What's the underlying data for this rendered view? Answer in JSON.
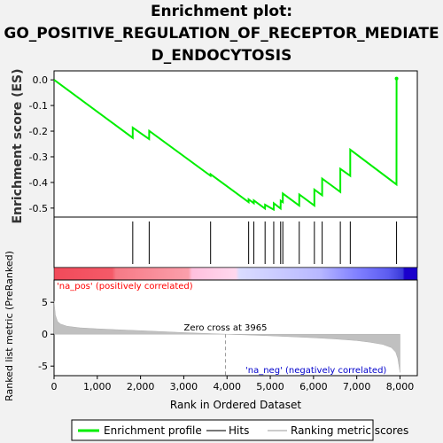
{
  "chart_data": {
    "type": "line",
    "title_lines": [
      "Enrichment plot:",
      "GO_POSITIVE_REGULATION_OF_RECEPTOR_MEDIATE",
      "D_ENDOCYTOSIS"
    ],
    "ylabel_top": "Enrichment score (ES)",
    "ylabel_bottom": "Ranked list metric (PreRanked)",
    "xlabel": "Rank in Ordered Dataset",
    "xlim": [
      0,
      8400
    ],
    "x_ticks": [
      0,
      1000,
      2000,
      3000,
      4000,
      5000,
      6000,
      7000,
      8000
    ],
    "x_tick_labels": [
      "0",
      "1,000",
      "2,000",
      "3,000",
      "4,000",
      "5,000",
      "6,000",
      "7,000",
      "8,000"
    ],
    "es_ylim": [
      -0.535,
      0.035
    ],
    "es_ticks": [
      0.0,
      -0.1,
      -0.2,
      -0.3,
      -0.4,
      -0.5
    ],
    "es_tick_labels": [
      "0.0",
      "-0.1",
      "-0.2",
      "-0.3",
      "-0.4",
      "-0.5"
    ],
    "metric_ylim": [
      -6.5,
      8.5
    ],
    "metric_ticks": [
      5,
      0,
      -5
    ],
    "metric_tick_labels": [
      "5",
      "0",
      "-5"
    ],
    "hits": [
      1820,
      2200,
      3620,
      4500,
      4620,
      4880,
      5080,
      5240,
      5290,
      5670,
      6020,
      6200,
      6620,
      6850,
      7920
    ],
    "series": [
      {
        "name": "Enrichment profile",
        "color": "#00ee00",
        "x": [
          0,
          1819,
          1820,
          2199,
          2200,
          3619,
          3620,
          4499,
          4500,
          4619,
          4620,
          4879,
          4880,
          5079,
          5080,
          5239,
          5240,
          5289,
          5290,
          5669,
          5670,
          6019,
          6020,
          6199,
          6200,
          6619,
          6620,
          6849,
          6850,
          7919,
          7920
        ],
        "y": [
          0.0,
          -0.226,
          -0.186,
          -0.231,
          -0.199,
          -0.374,
          -0.368,
          -0.477,
          -0.466,
          -0.481,
          -0.47,
          -0.502,
          -0.487,
          -0.506,
          -0.481,
          -0.502,
          -0.471,
          -0.477,
          -0.443,
          -0.49,
          -0.447,
          -0.49,
          -0.428,
          -0.45,
          -0.385,
          -0.437,
          -0.347,
          -0.374,
          -0.272,
          -0.408,
          0.005
        ]
      }
    ],
    "zero_cross_label": "Zero cross at 3965",
    "zero_cross_x": 3965,
    "pos_label": "'na_pos' (positively correlated)",
    "neg_label": "'na_neg' (negatively correlated)",
    "metric_curve": {
      "x": [
        0,
        30,
        80,
        150,
        300,
        600,
        1000,
        1500,
        2000,
        2500,
        3000,
        3500,
        3965,
        4500,
        5000,
        5500,
        6000,
        6500,
        7000,
        7300,
        7600,
        7800,
        7900,
        7950,
        8000
      ],
      "y": [
        5.2,
        3.0,
        2.0,
        1.6,
        1.25,
        1.0,
        0.85,
        0.7,
        0.55,
        0.4,
        0.25,
        0.12,
        0.0,
        -0.12,
        -0.25,
        -0.4,
        -0.55,
        -0.75,
        -1.0,
        -1.25,
        -1.6,
        -2.1,
        -2.8,
        -3.8,
        -6.0
      ]
    },
    "legend": [
      "Enrichment profile",
      "Hits",
      "Ranking metric scores"
    ],
    "colors": {
      "profile": "#00ee00",
      "hits": "#000000",
      "metric_fill": "#c0c0c0",
      "pos_text": "#ff0000",
      "neg_text": "#0000cc",
      "axis": "#000000",
      "background": "#f2f2f2",
      "panel": "#ffffff"
    }
  }
}
